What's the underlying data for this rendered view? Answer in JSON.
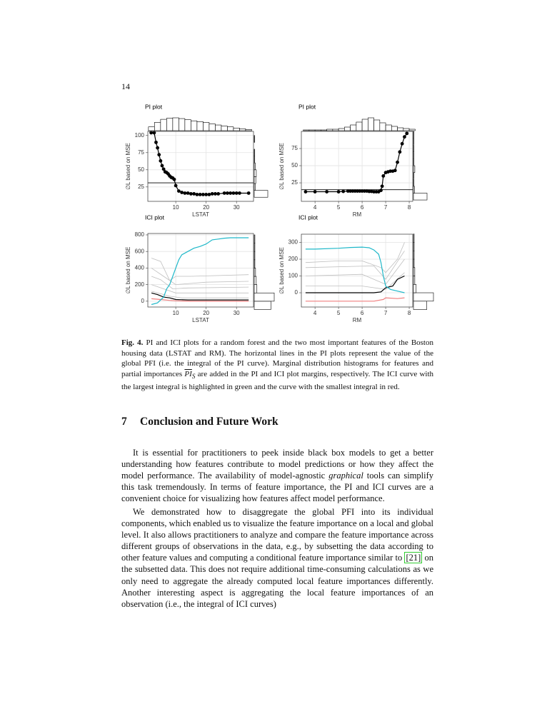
{
  "page_number": "14",
  "chart_data": [
    {
      "type": "line",
      "title": "PI plot",
      "xlabel": "LSTAT",
      "ylabel": "∅L based on MSE",
      "markers": true,
      "color": "#000000",
      "grid": true,
      "xlim": [
        0.8,
        35.6
      ],
      "ylim": [
        4,
        106
      ],
      "xticks": [
        10,
        20,
        30
      ],
      "yticks": [
        25,
        50,
        75,
        100
      ],
      "hline": 31,
      "x": [
        1.9,
        2.9,
        3.5,
        4.0,
        4.5,
        5.0,
        5.5,
        6.0,
        6.5,
        7.0,
        7.5,
        8.0,
        8.5,
        9.0,
        9.5,
        10.0,
        11,
        12,
        13,
        14,
        15,
        16,
        17,
        18,
        19,
        20,
        21,
        22,
        23,
        24,
        26,
        27,
        28,
        29,
        30,
        31,
        34
      ],
      "values": [
        104,
        104,
        90,
        82,
        72,
        63,
        56,
        51,
        47,
        46,
        44,
        41,
        39,
        38,
        36,
        27,
        19,
        17,
        16,
        16,
        15,
        15,
        14,
        14,
        14,
        14,
        14,
        15,
        15,
        15,
        16,
        16,
        16,
        16,
        16,
        16,
        16
      ],
      "top_histogram": {
        "bins": [
          1,
          3,
          5,
          7,
          9,
          11,
          13,
          15,
          17,
          19,
          21,
          23,
          25,
          27,
          29,
          31,
          33,
          35
        ],
        "counts": [
          10,
          22,
          30,
          33,
          34,
          32,
          29,
          26,
          24,
          22,
          18,
          15,
          12,
          10,
          7,
          5,
          3
        ]
      },
      "side_histogram": {
        "bins": [
          10,
          20,
          30,
          40,
          50,
          60,
          70,
          80,
          90,
          100,
          110
        ],
        "counts": [
          26,
          2,
          3,
          4,
          2,
          1,
          1,
          0,
          1,
          0
        ]
      }
    },
    {
      "type": "line",
      "title": "PI plot",
      "xlabel": "RM",
      "ylabel": "∅L based on MSE",
      "markers": true,
      "color": "#000000",
      "grid": true,
      "xlim": [
        3.42,
        8.15
      ],
      "ylim": [
        -2,
        100
      ],
      "xticks": [
        4,
        5,
        6,
        7,
        8
      ],
      "yticks": [
        25,
        50,
        75
      ],
      "hline": 15,
      "x": [
        3.6,
        4.0,
        4.5,
        5.0,
        5.2,
        5.4,
        5.5,
        5.6,
        5.7,
        5.8,
        5.9,
        6.0,
        6.1,
        6.2,
        6.3,
        6.4,
        6.5,
        6.6,
        6.7,
        6.8,
        6.85,
        6.9,
        7.0,
        7.1,
        7.2,
        7.3,
        7.4,
        7.5,
        7.6,
        7.7,
        7.8,
        7.9
      ],
      "values": [
        12,
        12,
        12,
        12,
        12.5,
        13,
        13,
        13,
        13,
        13,
        13,
        13,
        13,
        13,
        12.5,
        12.5,
        12,
        12,
        12,
        14,
        20,
        35,
        40,
        41,
        42,
        42,
        43,
        55,
        70,
        82,
        92,
        97
      ],
      "top_histogram": {
        "bins": [
          3.5,
          3.75,
          4,
          4.25,
          4.5,
          4.75,
          5,
          5.25,
          5.5,
          5.75,
          6,
          6.25,
          6.5,
          6.75,
          7,
          7.25,
          7.5,
          7.75,
          8,
          8.25
        ],
        "counts": [
          1,
          1,
          1,
          1,
          2,
          2,
          3,
          5,
          8,
          12,
          16,
          18,
          15,
          11,
          8,
          6,
          4,
          3,
          2
        ]
      },
      "side_histogram": {
        "bins": [
          0,
          10,
          20,
          30,
          40,
          50,
          60,
          70,
          80,
          90,
          100
        ],
        "counts": [
          30,
          2,
          1,
          1,
          3,
          1,
          1,
          1,
          1,
          1
        ]
      }
    },
    {
      "type": "ici",
      "title": "ICI plot",
      "xlabel": "LSTAT",
      "ylabel": "∅L based on MSE",
      "grid": true,
      "xlim": [
        0.8,
        35.6
      ],
      "ylim": [
        -70,
        817
      ],
      "xticks": [
        10,
        20,
        30
      ],
      "yticks": [
        0,
        200,
        400,
        600,
        800
      ],
      "series": [
        {
          "color": "#bfbfbf",
          "x": [
            2,
            5,
            8,
            10,
            15,
            34
          ],
          "values": [
            520,
            480,
            250,
            300,
            300,
            320
          ]
        },
        {
          "color": "#bfbfbf",
          "x": [
            2,
            6,
            10,
            20,
            34
          ],
          "values": [
            400,
            300,
            200,
            230,
            240
          ]
        },
        {
          "color": "#bfbfbf",
          "x": [
            2,
            6,
            10,
            34
          ],
          "values": [
            200,
            150,
            100,
            100
          ]
        },
        {
          "color": "#bfbfbf",
          "x": [
            2,
            8,
            12,
            34
          ],
          "values": [
            120,
            60,
            40,
            40
          ]
        },
        {
          "color": "#bfbfbf",
          "x": [
            2,
            5,
            9,
            14,
            34
          ],
          "values": [
            300,
            260,
            150,
            160,
            170
          ]
        },
        {
          "color": "#000000",
          "x": [
            2,
            4,
            6,
            8,
            10,
            14,
            34
          ],
          "values": [
            100,
            80,
            50,
            40,
            20,
            15,
            15
          ]
        },
        {
          "color": "#f08080",
          "x": [
            2,
            5,
            8,
            10,
            15,
            34
          ],
          "values": [
            30,
            20,
            10,
            5,
            0,
            0
          ]
        },
        {
          "color": "#1fb8c9",
          "x": [
            2,
            4,
            6,
            7,
            8,
            9,
            10,
            11,
            12,
            14,
            16,
            18,
            20,
            22,
            24,
            26,
            28,
            30,
            34
          ],
          "values": [
            -40,
            -20,
            50,
            150,
            200,
            300,
            400,
            500,
            560,
            600,
            640,
            660,
            690,
            740,
            750,
            760,
            765,
            765,
            765
          ]
        }
      ],
      "side_histogram": {
        "bins": [
          -100,
          0,
          100,
          200,
          300,
          400,
          500,
          600,
          700,
          800
        ],
        "counts": [
          25,
          30,
          4,
          3,
          2,
          1,
          1,
          1,
          1
        ]
      }
    },
    {
      "type": "ici",
      "title": "ICI plot",
      "xlabel": "RM",
      "ylabel": "∅L based on MSE",
      "grid": true,
      "xlim": [
        3.42,
        8.15
      ],
      "ylim": [
        -85,
        349
      ],
      "xticks": [
        4,
        5,
        6,
        7,
        8
      ],
      "yticks": [
        0,
        100,
        200,
        300
      ],
      "series": [
        {
          "color": "#bfbfbf",
          "x": [
            3.6,
            5,
            6,
            6.8,
            7,
            7.5,
            7.8
          ],
          "values": [
            180,
            190,
            190,
            150,
            120,
            200,
            300
          ]
        },
        {
          "color": "#bfbfbf",
          "x": [
            3.6,
            6,
            7,
            7.8
          ],
          "values": [
            100,
            110,
            50,
            200
          ]
        },
        {
          "color": "#bfbfbf",
          "x": [
            3.6,
            6,
            7,
            7.8
          ],
          "values": [
            40,
            40,
            20,
            120
          ]
        },
        {
          "color": "#bfbfbf",
          "x": [
            3.6,
            6.5,
            7,
            7.8
          ],
          "values": [
            150,
            160,
            80,
            250
          ]
        },
        {
          "color": "#000000",
          "x": [
            3.6,
            5,
            6.5,
            6.8,
            7,
            7.3,
            7.5,
            7.8
          ],
          "values": [
            0,
            0,
            0,
            5,
            30,
            40,
            80,
            100
          ]
        },
        {
          "color": "#f08080",
          "x": [
            3.6,
            5,
            6.5,
            6.9,
            7,
            7.5,
            7.8
          ],
          "values": [
            -50,
            -50,
            -50,
            -40,
            -30,
            -35,
            -30
          ]
        },
        {
          "color": "#1fb8c9",
          "x": [
            3.6,
            4,
            5,
            5.5,
            6,
            6.3,
            6.5,
            6.7,
            6.8,
            6.9,
            7,
            7.2,
            7.5,
            7.8
          ],
          "values": [
            260,
            260,
            265,
            270,
            272,
            268,
            255,
            230,
            180,
            100,
            40,
            20,
            10,
            0
          ]
        }
      ],
      "side_histogram": {
        "bins": [
          -100,
          -50,
          0,
          50,
          100,
          150,
          200,
          250,
          300,
          350
        ],
        "counts": [
          20,
          30,
          4,
          2,
          2,
          1,
          1,
          1,
          1
        ]
      }
    }
  ],
  "caption": {
    "label": "Fig. 4.",
    "text_before": "PI and ICI plots for a random forest and the two most important features of the Boston housing data (LSTAT and RM). The horizontal lines in the PI plots represent the value of the global PFI (i.e. the integral of the PI curve). Marginal distribution histograms for features and partial importances",
    "math_main": "PI",
    "math_sub": "S",
    "text_after": "are added in the PI and ICI plot margins, respectively. The ICI curve with the largest integral is highlighted in green and the curve with the smallest integral in red."
  },
  "section": {
    "number": "7",
    "title": "Conclusion and Future Work"
  },
  "paragraphs": [
    {
      "before": "It is essential for practitioners to peek inside black box models to get a better understanding how features contribute to model predictions or how they affect the model performance. The availability of model-agnostic",
      "emphasis": "graphical",
      "after": "tools can simplify this task tremendously. In terms of feature importance, the PI and ICI curves are a convenient choice for visualizing how features affect model performance."
    },
    {
      "before": "We demonstrated how to disaggregate the global PFI into its individual components, which enabled us to visualize the feature importance on a local and global level. It also allows practitioners to analyze and compare the feature importance across different groups of observations in the data, e.g., by subsetting the data according to other feature values and computing a conditional feature importance similar to",
      "citation": "[21]",
      "after": "on the subsetted data. This does not require additional time-consuming calculations as we only need to aggregate the already computed local feature importances differently. Another interesting aspect is aggregating the local feature importances of an observation (i.e., the integral of ICI curves)"
    }
  ]
}
